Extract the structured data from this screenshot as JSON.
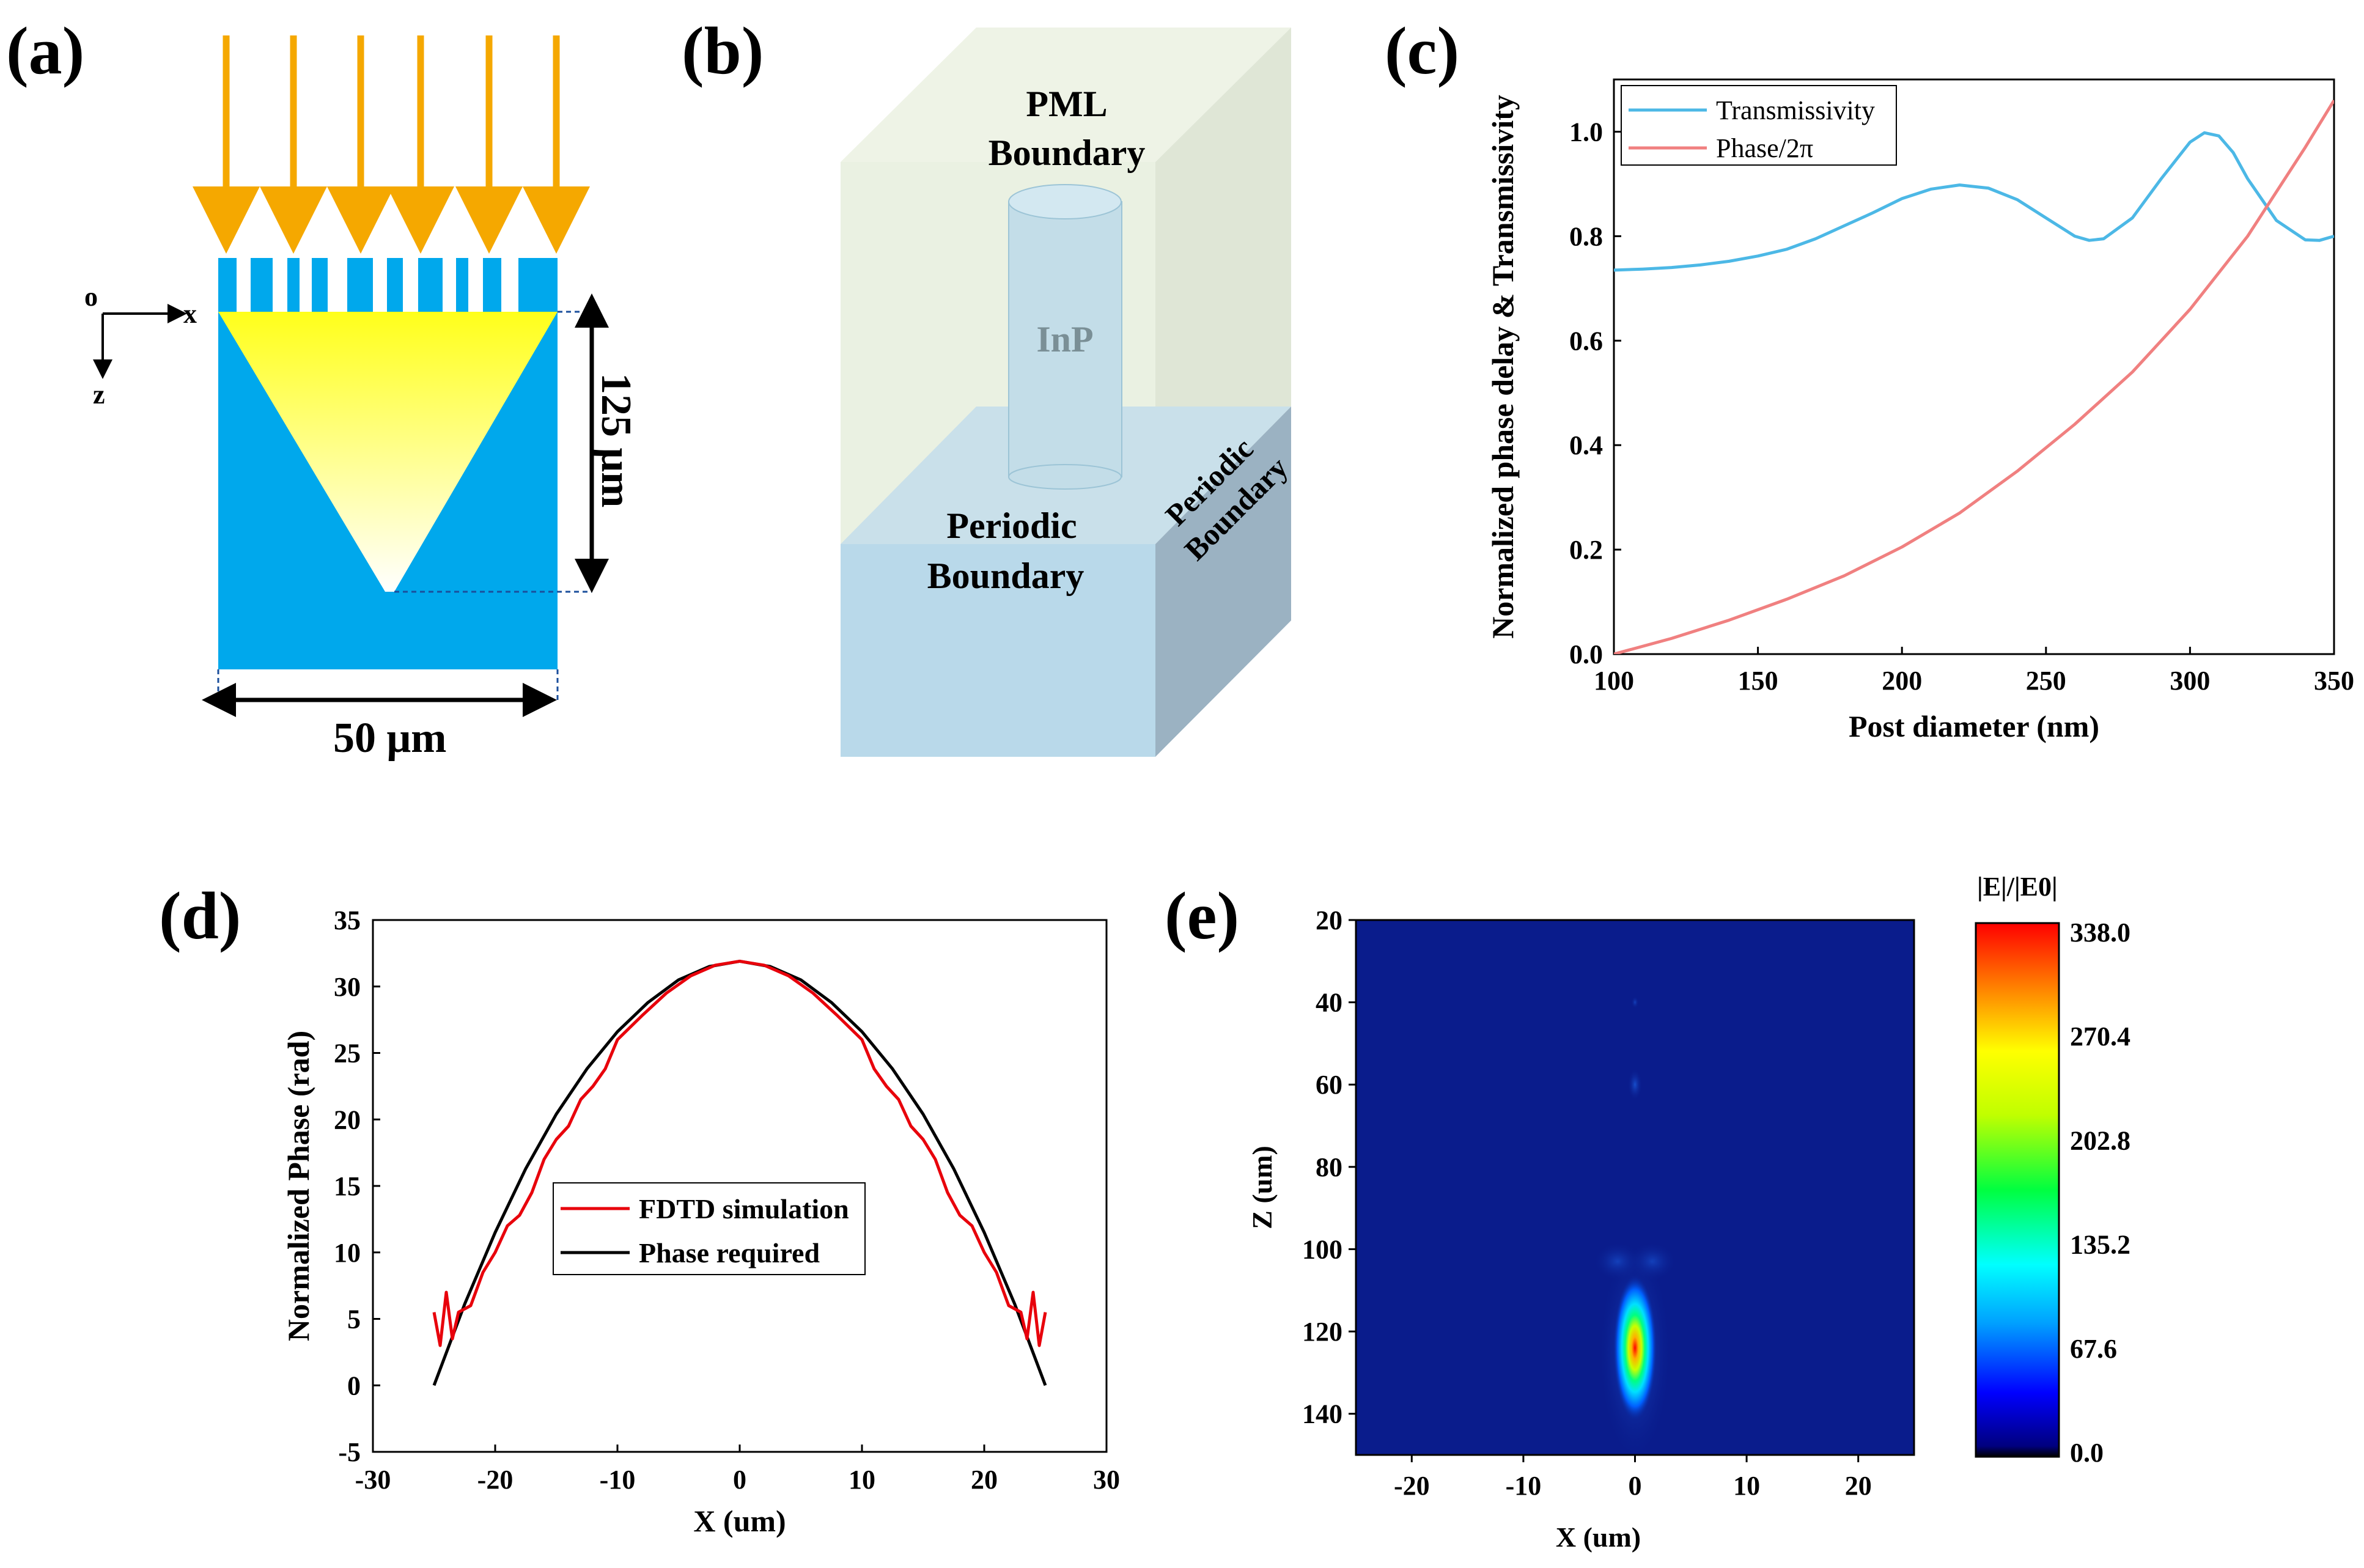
{
  "panels": {
    "a": {
      "label": "(a)",
      "axis_origin": "o",
      "axis_x": "x",
      "axis_z": "z",
      "depth_label": "125 μm",
      "width_label": "50 μm",
      "colors": {
        "substrate": "#00a8ec",
        "arrow": "#f5a800",
        "cone_top": "#ffff00",
        "cone_bottom": "#ffffff"
      }
    },
    "b": {
      "label": "(b)",
      "pml_line1": "PML",
      "pml_line2": "Boundary",
      "post_label": "InP",
      "periodic_front_line1": "Periodic",
      "periodic_front_line2": "Boundary",
      "periodic_side_line1": "Periodic",
      "periodic_side_line2": "Boundary"
    },
    "c": {
      "label": "(c)"
    },
    "d": {
      "label": "(d)"
    },
    "e": {
      "label": "(e)"
    }
  },
  "chart_data": [
    {
      "id": "c",
      "type": "line",
      "xlabel": "Post diameter (nm)",
      "ylabel": "Normalized phase delay & Transmissivity",
      "xlim": [
        100,
        350
      ],
      "ylim": [
        0,
        1.1
      ],
      "xticks": [
        100,
        150,
        200,
        250,
        300,
        350
      ],
      "yticks": [
        "0.0",
        "0.2",
        "0.4",
        "0.6",
        "0.8",
        "1.0"
      ],
      "series": [
        {
          "name": "Transmissivity",
          "color": "#4cb8e6",
          "x": [
            100,
            110,
            120,
            130,
            140,
            150,
            160,
            170,
            180,
            190,
            200,
            210,
            220,
            230,
            240,
            250,
            260,
            265,
            270,
            280,
            290,
            300,
            305,
            310,
            315,
            320,
            330,
            340,
            345,
            350
          ],
          "y": [
            0.735,
            0.737,
            0.74,
            0.745,
            0.752,
            0.762,
            0.775,
            0.795,
            0.82,
            0.845,
            0.872,
            0.89,
            0.898,
            0.892,
            0.87,
            0.835,
            0.8,
            0.792,
            0.795,
            0.835,
            0.91,
            0.98,
            0.998,
            0.992,
            0.96,
            0.91,
            0.83,
            0.793,
            0.792,
            0.8
          ]
        },
        {
          "name": "Phase/2π",
          "color": "#f08080",
          "x": [
            100,
            120,
            140,
            160,
            180,
            200,
            220,
            240,
            260,
            280,
            300,
            320,
            340,
            350
          ],
          "y": [
            0.0,
            0.03,
            0.065,
            0.105,
            0.15,
            0.205,
            0.27,
            0.35,
            0.44,
            0.54,
            0.66,
            0.8,
            0.97,
            1.06
          ]
        }
      ]
    },
    {
      "id": "d",
      "type": "line",
      "xlabel": "X (um)",
      "ylabel": "Normalized Phase (rad)",
      "xlim": [
        -30,
        30
      ],
      "ylim": [
        -5,
        35
      ],
      "xticks": [
        -30,
        -20,
        -10,
        0,
        10,
        20,
        30
      ],
      "yticks": [
        -5,
        0,
        5,
        10,
        15,
        20,
        25,
        30,
        35
      ],
      "series": [
        {
          "name": "FDTD simulation",
          "color": "#e8000b",
          "x": [
            -25.0,
            -24.5,
            -24.0,
            -23.5,
            -23.0,
            -22.0,
            -21.0,
            -20.0,
            -19.0,
            -18.0,
            -17.0,
            -16.0,
            -15.0,
            -14.0,
            -13.0,
            -12.0,
            -11.0,
            -10.0,
            -8.0,
            -6.0,
            -4.0,
            -2.0,
            0.0,
            2.0,
            4.0,
            6.0,
            8.0,
            10.0,
            11.0,
            12.0,
            13.0,
            14.0,
            15.0,
            16.0,
            17.0,
            18.0,
            19.0,
            20.0,
            21.0,
            22.0,
            23.0,
            23.5,
            24.0,
            24.5,
            25.0
          ],
          "y": [
            5.5,
            3.0,
            7.0,
            3.5,
            5.5,
            6.0,
            8.5,
            10.0,
            12.0,
            12.8,
            14.5,
            17.0,
            18.5,
            19.5,
            21.5,
            22.5,
            23.8,
            26.0,
            27.8,
            29.5,
            30.8,
            31.6,
            31.9,
            31.6,
            30.8,
            29.5,
            27.8,
            26.0,
            23.8,
            22.5,
            21.5,
            19.5,
            18.5,
            17.0,
            14.5,
            12.8,
            12.0,
            10.0,
            8.5,
            6.0,
            5.5,
            3.5,
            7.0,
            3.0,
            5.5
          ]
        },
        {
          "name": "Phase required",
          "color": "#000000",
          "x": [
            -25,
            -22.5,
            -20,
            -17.5,
            -15,
            -12.5,
            -10,
            -7.5,
            -5,
            -2.5,
            0,
            2.5,
            5,
            7.5,
            10,
            12.5,
            15,
            17.5,
            20,
            22.5,
            25
          ],
          "y": [
            0.0,
            6.1,
            11.5,
            16.3,
            20.4,
            23.8,
            26.6,
            28.8,
            30.5,
            31.5,
            31.9,
            31.5,
            30.5,
            28.8,
            26.6,
            23.8,
            20.4,
            16.3,
            11.5,
            6.1,
            0.0
          ]
        }
      ]
    },
    {
      "id": "e",
      "type": "heatmap",
      "xlabel": "X (um)",
      "ylabel": "Z (um)",
      "xlim": [
        -25,
        25
      ],
      "ylim": [
        150,
        20
      ],
      "xticks": [
        -20,
        -10,
        0,
        10,
        20
      ],
      "yticks": [
        20,
        40,
        60,
        80,
        100,
        120,
        140
      ],
      "colorbar_title": "|E|/|E0|",
      "colorbar_ticks": [
        "338.0",
        "270.4",
        "202.8",
        "135.2",
        "67.6",
        "0.0"
      ],
      "peak": {
        "x": 0,
        "z": 124,
        "value": 338.0
      },
      "background_color": "#0a1c8c"
    }
  ]
}
